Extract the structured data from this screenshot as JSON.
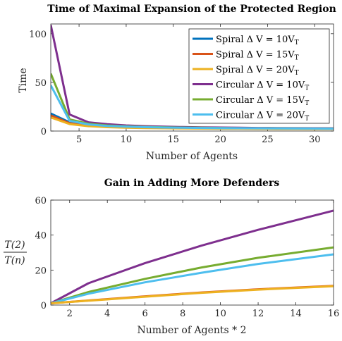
{
  "chart_data": [
    {
      "type": "line",
      "title": "Time of Maximal Expansion of the Protected Region",
      "xlabel": "Number of Agents",
      "ylabel": "Time",
      "xlim": [
        2,
        32
      ],
      "ylim": [
        0,
        110
      ],
      "xticks": [
        5,
        10,
        15,
        20,
        25,
        30
      ],
      "yticks": [
        0,
        50,
        100
      ],
      "grid": false,
      "legend_position": "top-right",
      "x": [
        2,
        4,
        6,
        8,
        10,
        12,
        14,
        16,
        18,
        20,
        22,
        24,
        26,
        28,
        30,
        32
      ],
      "series": [
        {
          "name_main": "Spiral Δ V = 10V",
          "name_sub": "T",
          "color": "#0072BD",
          "values": [
            18,
            9,
            6.5,
            5.3,
            4.6,
            4.1,
            3.8,
            3.5,
            3.3,
            3.1,
            3.0,
            2.9,
            2.8,
            2.7,
            2.6,
            2.6
          ]
        },
        {
          "name_main": "Spiral Δ V = 15V",
          "name_sub": "T",
          "color": "#D95319",
          "values": [
            16,
            8,
            5.6,
            4.5,
            3.9,
            3.5,
            3.2,
            3.0,
            2.8,
            2.7,
            2.6,
            2.5,
            2.4,
            2.3,
            2.3,
            2.2
          ]
        },
        {
          "name_main": "Spiral Δ V = 20V",
          "name_sub": "T",
          "color": "#EDB120",
          "values": [
            14,
            7.2,
            5.0,
            4.0,
            3.5,
            3.1,
            2.9,
            2.7,
            2.5,
            2.4,
            2.3,
            2.2,
            2.1,
            2.1,
            2.0,
            2.0
          ]
        },
        {
          "name_main": "Circular Δ V = 10V",
          "name_sub": "T",
          "color": "#7E2F8E",
          "values": [
            109,
            17,
            9,
            7,
            5.8,
            5.0,
            4.5,
            4.1,
            3.8,
            3.6,
            3.4,
            3.2,
            3.1,
            3.0,
            2.9,
            2.8
          ]
        },
        {
          "name_main": "Circular Δ V = 15V",
          "name_sub": "T",
          "color": "#77AC30",
          "values": [
            59,
            12,
            7.5,
            5.8,
            4.9,
            4.3,
            3.9,
            3.6,
            3.4,
            3.2,
            3.0,
            2.9,
            2.8,
            2.7,
            2.6,
            2.5
          ]
        },
        {
          "name_main": "Circular Δ V = 20V",
          "name_sub": "T",
          "color": "#4DBEEE",
          "values": [
            47,
            10.5,
            6.8,
            5.3,
            4.5,
            4.0,
            3.6,
            3.4,
            3.2,
            3.0,
            2.9,
            2.8,
            2.7,
            2.6,
            2.5,
            2.4
          ]
        }
      ]
    },
    {
      "type": "line",
      "title": "Gain in Adding More Defenders",
      "xlabel": "Number of Agents * 2",
      "ylabel_num": "T(2)",
      "ylabel_den": "T(n)",
      "xlim": [
        1,
        16
      ],
      "ylim": [
        0,
        60
      ],
      "xticks": [
        2,
        4,
        6,
        8,
        10,
        12,
        14,
        16
      ],
      "yticks": [
        0,
        20,
        40,
        60
      ],
      "grid": false,
      "x": [
        1,
        3,
        6,
        9,
        12,
        16
      ],
      "series": [
        {
          "color": "#7E2F8E",
          "values": [
            1,
            12.5,
            24,
            34,
            43,
            54
          ]
        },
        {
          "color": "#77AC30",
          "values": [
            1,
            7.5,
            15,
            21.5,
            27,
            33
          ]
        },
        {
          "color": "#4DBEEE",
          "values": [
            1,
            6.5,
            13,
            18.5,
            23.5,
            29
          ]
        },
        {
          "color": "#D95319",
          "values": [
            1,
            2.6,
            5,
            7.2,
            9,
            11
          ]
        },
        {
          "color": "#EDB120",
          "values": [
            1,
            2.5,
            4.8,
            7.0,
            8.8,
            10.8
          ]
        }
      ]
    }
  ]
}
